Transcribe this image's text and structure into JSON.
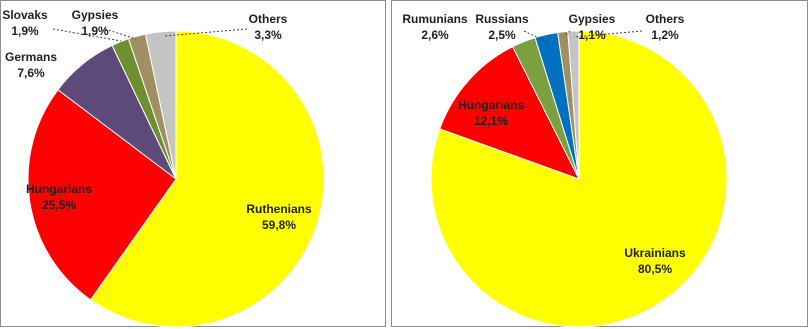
{
  "chart_data": [
    {
      "type": "pie",
      "slices": [
        {
          "label": "Ruthenians",
          "value": "59,8%",
          "pct": 59.8,
          "color": "#ffff00"
        },
        {
          "label": "Hungarians",
          "value": "25,5%",
          "pct": 25.5,
          "color": "#ff0000"
        },
        {
          "label": "Germans",
          "value": "7,6%",
          "pct": 7.6,
          "color": "#5e4a7a"
        },
        {
          "label": "Slovaks",
          "value": "1,9%",
          "pct": 1.9,
          "color": "#6f8f2e"
        },
        {
          "label": "Gypsies",
          "value": "1,9%",
          "pct": 1.9,
          "color": "#a08f62"
        },
        {
          "label": "Others",
          "value": "3,3%",
          "pct": 3.3,
          "color": "#c4c4c4"
        }
      ]
    },
    {
      "type": "pie",
      "slices": [
        {
          "label": "Ukrainians",
          "value": "80,5%",
          "pct": 80.5,
          "color": "#ffff00"
        },
        {
          "label": "Hungarians",
          "value": "12,1%",
          "pct": 12.1,
          "color": "#ff0000"
        },
        {
          "label": "Rumunians",
          "value": "2,6%",
          "pct": 2.6,
          "color": "#7aa040"
        },
        {
          "label": "Russians",
          "value": "2,5%",
          "pct": 2.5,
          "color": "#0070c0"
        },
        {
          "label": "Gypsies",
          "value": "1,1%",
          "pct": 1.1,
          "color": "#a08f62"
        },
        {
          "label": "Others",
          "value": "1,2%",
          "pct": 1.2,
          "color": "#c4c4c4"
        }
      ]
    }
  ]
}
